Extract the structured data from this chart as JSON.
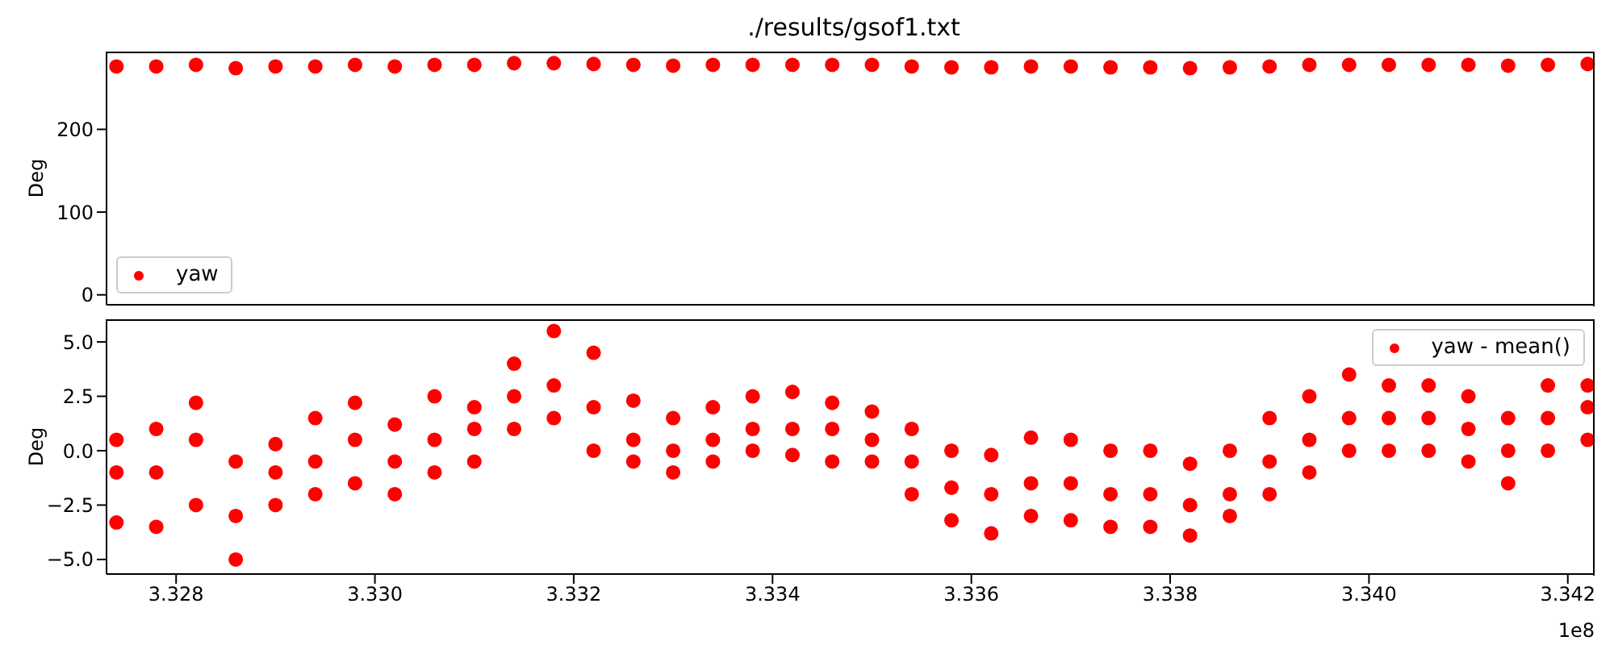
{
  "chart_data": [
    {
      "type": "scatter",
      "title": "./results/gsof1.txt",
      "ylabel": "Deg",
      "legend": "bottom left",
      "marker": "circle",
      "tick_labels": "y",
      "xlim": [
        3.3273,
        3.34227
      ],
      "ylim": [
        -12,
        294
      ],
      "yticks": [
        0,
        100,
        200
      ],
      "series": [
        {
          "name": "yaw",
          "color": "#ff0000",
          "x": [
            3.3274,
            3.3278,
            3.3282,
            3.3286,
            3.329,
            3.3294,
            3.3298,
            3.3302,
            3.3306,
            3.331,
            3.3314,
            3.3318,
            3.3322,
            3.3326,
            3.333,
            3.3334,
            3.3338,
            3.3342,
            3.3346,
            3.335,
            3.3354,
            3.3358,
            3.3362,
            3.3366,
            3.337,
            3.3374,
            3.3378,
            3.3382,
            3.3386,
            3.339,
            3.3394,
            3.3398,
            3.3402,
            3.3406,
            3.341,
            3.3414,
            3.3418,
            3.3422
          ],
          "values": [
            276,
            276,
            278,
            274,
            276,
            276,
            278,
            276,
            278,
            278,
            280,
            280,
            279,
            278,
            277,
            278,
            278,
            278,
            278,
            278,
            276,
            275,
            275,
            276,
            276,
            275,
            275,
            274,
            275,
            276,
            278,
            278,
            278,
            278,
            278,
            277,
            278,
            279
          ]
        }
      ]
    },
    {
      "type": "scatter",
      "ylabel": "Deg",
      "legend": "top right",
      "marker": "circle",
      "annotations": [
        "1e8"
      ],
      "xlim": [
        3.3273,
        3.34227
      ],
      "ylim": [
        -5.67,
        6.04
      ],
      "xticks": [
        {
          "value": 3.328,
          "label": "3.328"
        },
        {
          "value": 3.33,
          "label": "3.330"
        },
        {
          "value": 3.332,
          "label": "3.332"
        },
        {
          "value": 3.334,
          "label": "3.334"
        },
        {
          "value": 3.336,
          "label": "3.336"
        },
        {
          "value": 3.338,
          "label": "3.338"
        },
        {
          "value": 3.34,
          "label": "3.340"
        },
        {
          "value": 3.342,
          "label": "3.342"
        }
      ],
      "yticks": [
        {
          "value": -5,
          "label": "−5.0"
        },
        {
          "value": -2.5,
          "label": "−2.5"
        },
        {
          "value": 0,
          "label": "0.0"
        },
        {
          "value": 2.5,
          "label": "2.5"
        },
        {
          "value": 5,
          "label": "5.0"
        }
      ],
      "series": [
        {
          "name": "yaw - mean()",
          "color": "#ff0000",
          "x": [
            3.3274,
            3.3274,
            3.3274,
            3.3278,
            3.3278,
            3.3278,
            3.3282,
            3.3282,
            3.3282,
            3.3286,
            3.3286,
            3.3286,
            3.329,
            3.329,
            3.329,
            3.3294,
            3.3294,
            3.3294,
            3.3298,
            3.3298,
            3.3298,
            3.3302,
            3.3302,
            3.3302,
            3.3306,
            3.3306,
            3.3306,
            3.331,
            3.331,
            3.331,
            3.3314,
            3.3314,
            3.3314,
            3.3318,
            3.3318,
            3.3318,
            3.3322,
            3.3322,
            3.3322,
            3.3326,
            3.3326,
            3.3326,
            3.333,
            3.333,
            3.333,
            3.3334,
            3.3334,
            3.3334,
            3.3338,
            3.3338,
            3.3338,
            3.3342,
            3.3342,
            3.3342,
            3.3346,
            3.3346,
            3.3346,
            3.335,
            3.335,
            3.335,
            3.3354,
            3.3354,
            3.3354,
            3.3358,
            3.3358,
            3.3358,
            3.3362,
            3.3362,
            3.3362,
            3.3366,
            3.3366,
            3.3366,
            3.337,
            3.337,
            3.337,
            3.3374,
            3.3374,
            3.3374,
            3.3378,
            3.3378,
            3.3378,
            3.3382,
            3.3382,
            3.3382,
            3.3386,
            3.3386,
            3.3386,
            3.339,
            3.339,
            3.339,
            3.3394,
            3.3394,
            3.3394,
            3.3398,
            3.3398,
            3.3398,
            3.3402,
            3.3402,
            3.3402,
            3.3406,
            3.3406,
            3.3406,
            3.341,
            3.341,
            3.341,
            3.3414,
            3.3414,
            3.3414,
            3.3418,
            3.3418,
            3.3418,
            3.3422,
            3.3422,
            3.3422
          ],
          "values": [
            -3.3,
            -1,
            0.5,
            -3.5,
            -1,
            1,
            -2.5,
            0.5,
            2.2,
            -5,
            -3,
            -0.5,
            -2.5,
            -1,
            0.3,
            -2,
            -0.5,
            1.5,
            -1.5,
            0.5,
            2.2,
            -2,
            -0.5,
            1.2,
            -1,
            0.5,
            2.5,
            -0.5,
            1,
            2,
            1,
            2.5,
            4,
            1.5,
            3,
            5.5,
            0,
            2,
            4.5,
            -0.5,
            0.5,
            2.3,
            -1,
            0,
            1.5,
            -0.5,
            0.5,
            2,
            0,
            1,
            2.5,
            -0.2,
            1,
            2.7,
            -0.5,
            1,
            2.2,
            -0.5,
            0.5,
            1.8,
            -2,
            -0.5,
            1,
            -3.2,
            -1.7,
            0,
            -3.8,
            -2,
            -0.2,
            -3,
            -1.5,
            0.6,
            -3.2,
            -1.5,
            0.5,
            -3.5,
            -2,
            0,
            -3.5,
            -2,
            0,
            -3.9,
            -2.5,
            -0.6,
            -3,
            -2,
            0,
            -2,
            -0.5,
            1.5,
            -1,
            0.5,
            2.5,
            0,
            1.5,
            3.5,
            0,
            1.5,
            3,
            0,
            1.5,
            3,
            -0.5,
            1,
            2.5,
            -1.5,
            0,
            1.5,
            0,
            1.5,
            3,
            0.5,
            2,
            3
          ]
        }
      ]
    }
  ]
}
